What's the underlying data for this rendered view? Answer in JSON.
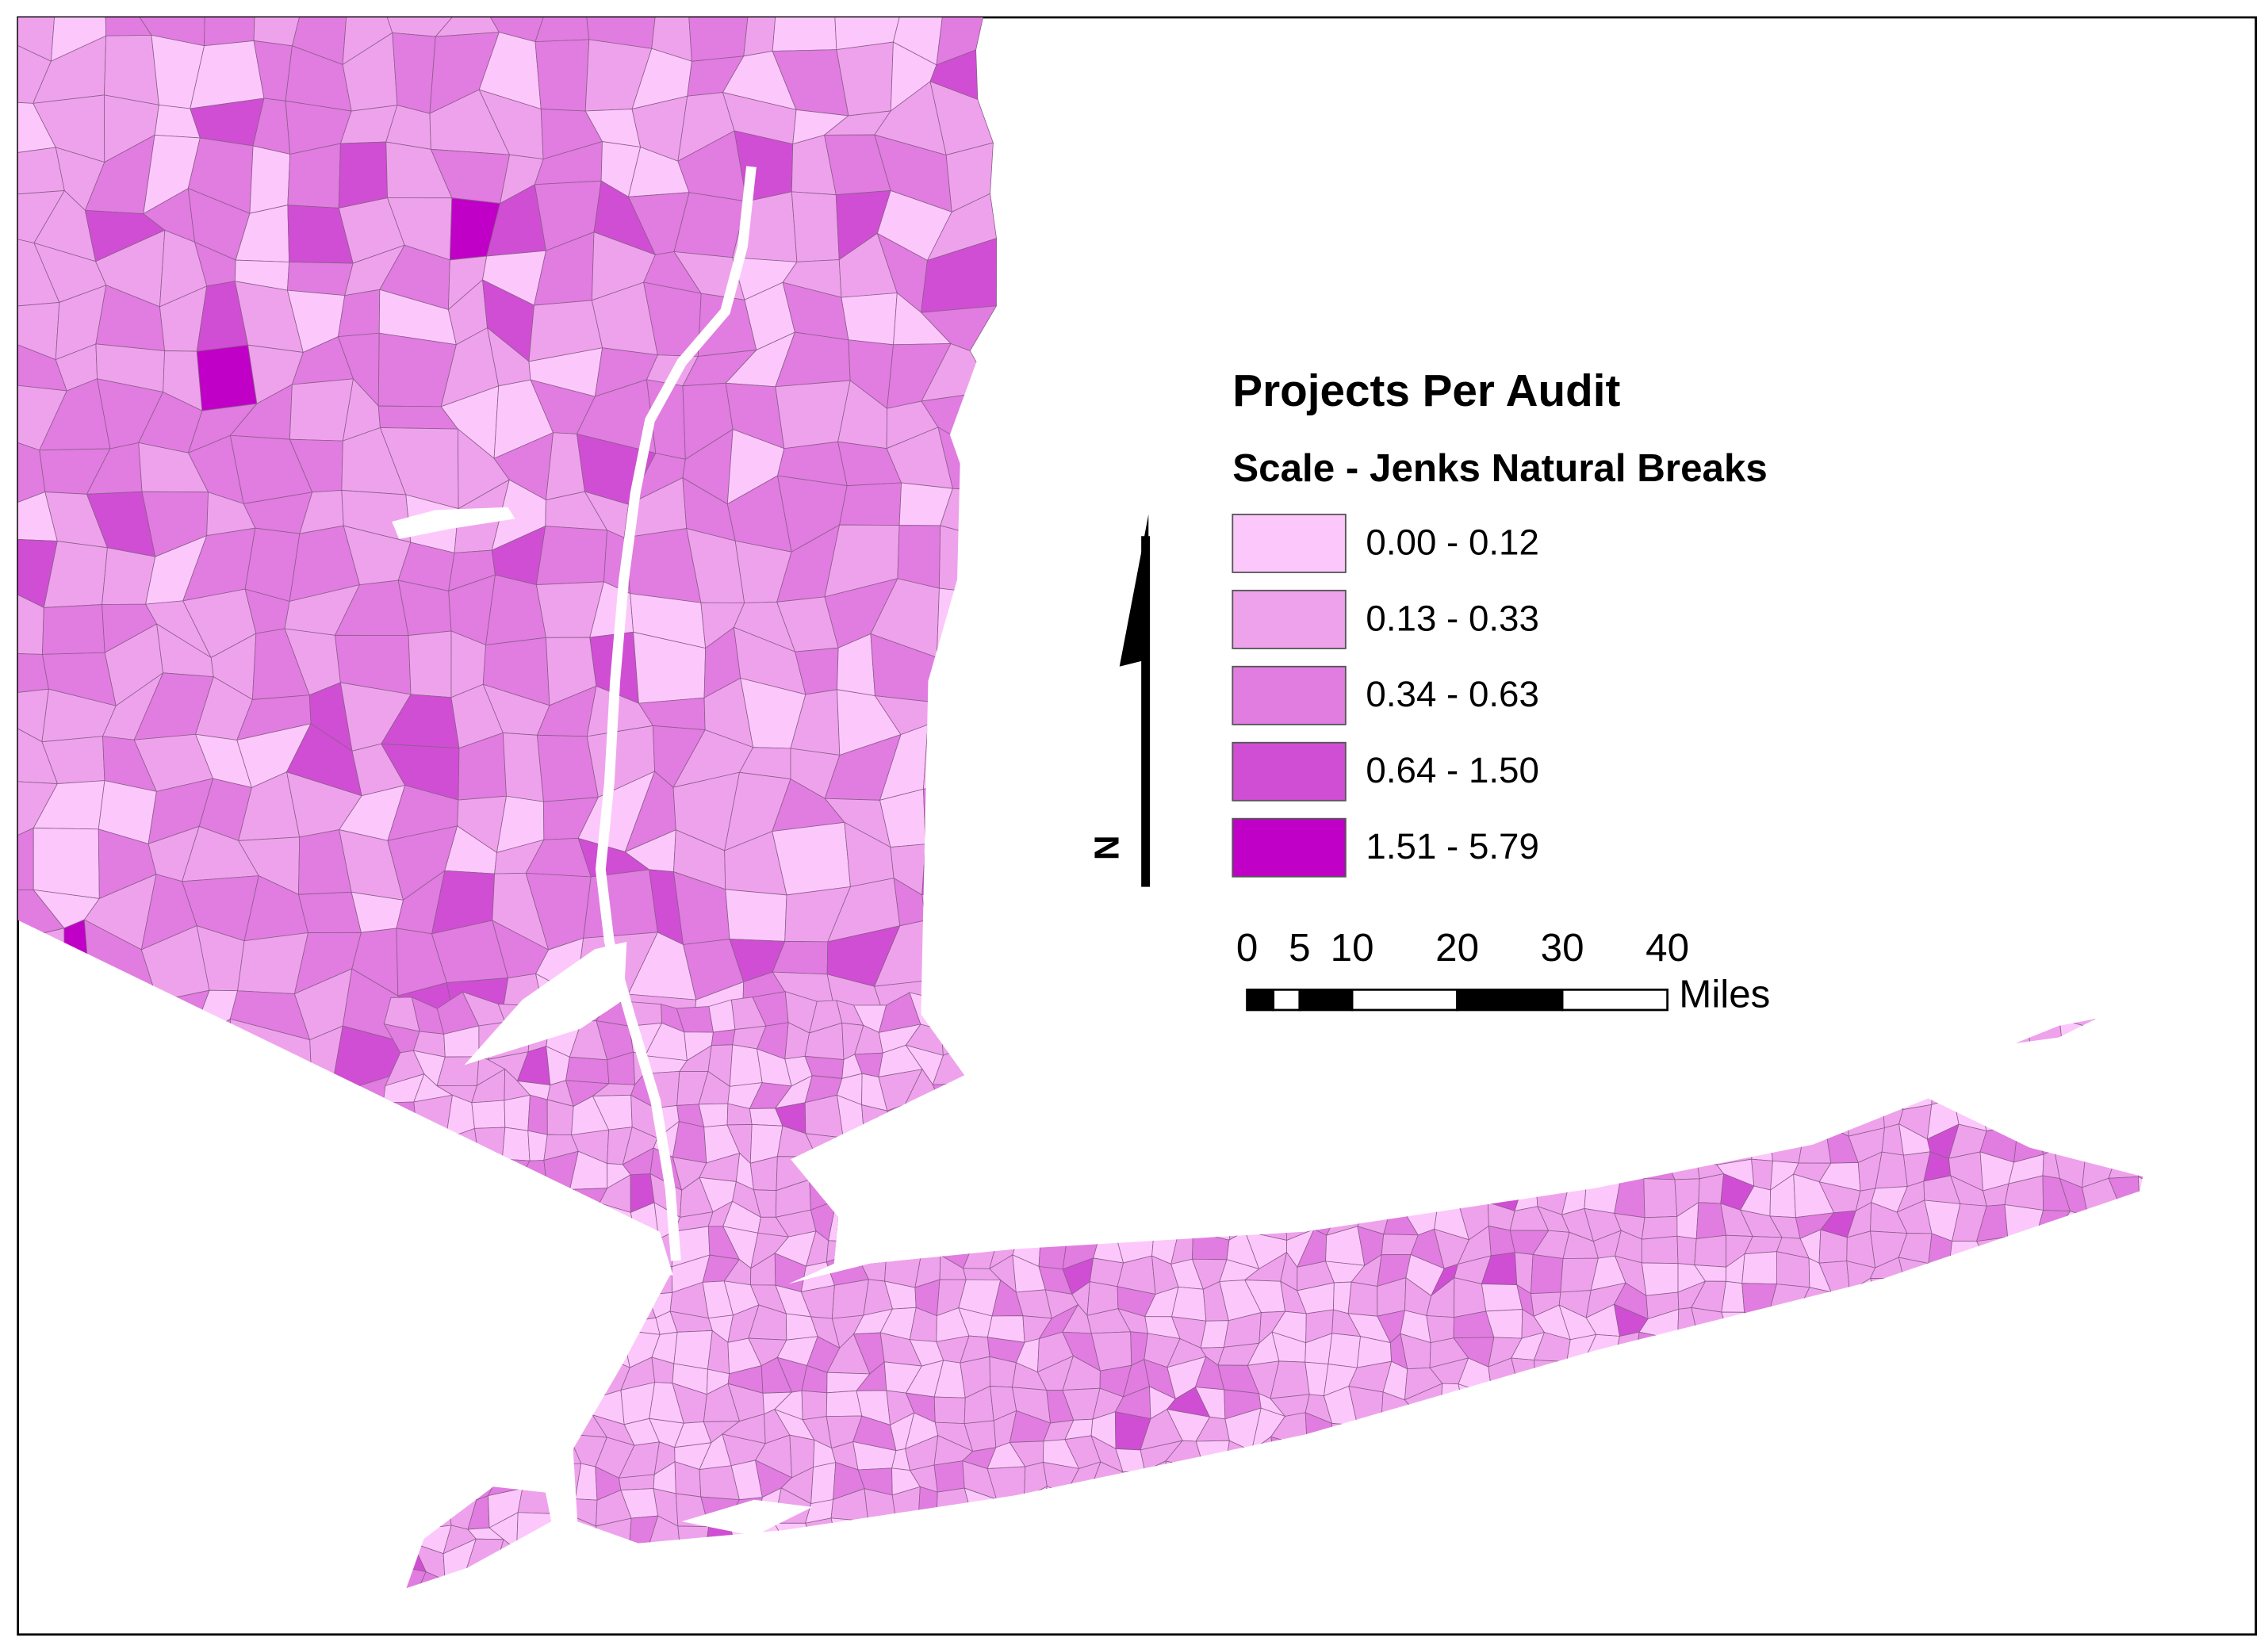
{
  "map": {
    "legend": {
      "title": "Projects Per Audit",
      "subtitle": "Scale - Jenks Natural Breaks",
      "classes": [
        {
          "label": "0.00 - 0.12",
          "color": "#fcc8fb"
        },
        {
          "label": "0.13 - 0.33",
          "color": "#efa2ec"
        },
        {
          "label": "0.34 - 0.63",
          "color": "#e17ce0"
        },
        {
          "label": "0.64 - 1.50",
          "color": "#d04ed3"
        },
        {
          "label": "1.51 - 5.79",
          "color": "#c000c6"
        }
      ]
    },
    "north_arrow": {
      "label": "N"
    },
    "scale_bar": {
      "ticks": [
        0,
        5,
        10,
        20,
        30,
        40
      ],
      "unit": "Miles"
    }
  }
}
